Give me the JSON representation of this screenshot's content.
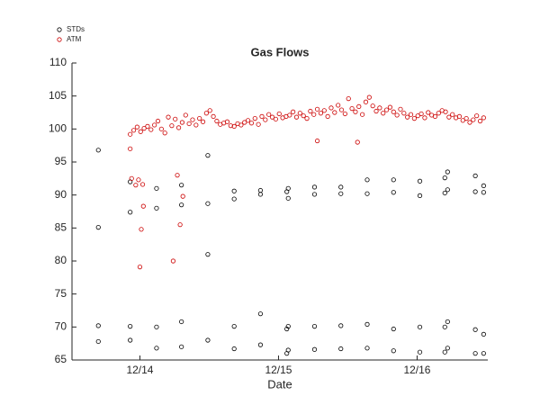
{
  "chart_data": {
    "type": "scatter",
    "title": "Gas Flows",
    "x_label": "Date",
    "xlim": [
      13.51,
      16.51
    ],
    "xticks": [
      {
        "value": 14,
        "label": "12/14"
      },
      {
        "value": 15,
        "label": "12/15"
      },
      {
        "value": 16,
        "label": "12/16"
      }
    ],
    "ylim": [
      65,
      110
    ],
    "yticks": [
      65,
      70,
      75,
      80,
      85,
      90,
      95,
      100,
      105,
      110
    ],
    "grid": false,
    "legend": "top-left",
    "series": [
      {
        "name": "STDs",
        "color": "#000000",
        "x": [
          13.7,
          13.7,
          13.7,
          13.7,
          13.93,
          13.93,
          13.93,
          13.93,
          14.12,
          14.12,
          14.12,
          14.12,
          14.3,
          14.3,
          14.3,
          14.3,
          14.49,
          14.49,
          14.49,
          14.49,
          14.68,
          14.68,
          14.68,
          14.68,
          14.87,
          14.87,
          14.87,
          14.87,
          15.07,
          15.07,
          15.07,
          15.07,
          15.06,
          15.06,
          15.06,
          15.26,
          15.26,
          15.26,
          15.26,
          15.45,
          15.45,
          15.45,
          15.45,
          15.64,
          15.64,
          15.64,
          15.64,
          15.83,
          15.83,
          15.83,
          15.83,
          16.02,
          16.02,
          16.02,
          16.02,
          16.22,
          16.22,
          16.2,
          16.2,
          16.22,
          16.2,
          16.22,
          16.2,
          16.42,
          16.42,
          16.42,
          16.42,
          16.48,
          16.48,
          16.48,
          16.48
        ],
        "values": [
          96.8,
          85.1,
          70.2,
          67.8,
          92.0,
          87.4,
          70.1,
          68.0,
          91.0,
          88.0,
          70.0,
          66.8,
          91.5,
          88.5,
          70.8,
          67.0,
          96.0,
          88.7,
          81.0,
          68.0,
          90.6,
          89.4,
          70.1,
          66.7,
          90.7,
          90.1,
          72.0,
          67.3,
          91.0,
          89.5,
          70.1,
          66.5,
          90.5,
          69.7,
          66.0,
          91.2,
          90.1,
          70.1,
          66.6,
          91.2,
          90.2,
          70.2,
          66.7,
          92.3,
          90.2,
          70.4,
          66.8,
          92.3,
          90.4,
          69.7,
          66.4,
          92.1,
          89.9,
          70.0,
          66.2,
          93.5,
          90.8,
          92.6,
          90.3,
          70.8,
          70.0,
          66.8,
          66.2,
          92.9,
          90.5,
          69.6,
          66.0,
          91.4,
          90.4,
          68.9,
          66.0
        ]
      },
      {
        "name": "ATM",
        "color": "#cc0000",
        "x": [
          13.93,
          13.955,
          13.98,
          14.005,
          14.03,
          14.055,
          14.08,
          14.105,
          14.13,
          14.155,
          14.18,
          14.205,
          14.23,
          14.255,
          14.28,
          14.305,
          14.33,
          14.355,
          14.38,
          14.405,
          14.43,
          14.455,
          14.48,
          14.505,
          14.53,
          14.555,
          14.58,
          14.605,
          14.63,
          14.655,
          14.68,
          14.705,
          14.73,
          14.755,
          14.78,
          14.805,
          14.83,
          14.855,
          14.88,
          14.905,
          14.93,
          14.955,
          14.98,
          15.005,
          15.03,
          15.055,
          15.08,
          15.105,
          15.13,
          15.155,
          15.18,
          15.205,
          15.23,
          15.255,
          15.28,
          15.305,
          15.33,
          15.355,
          15.38,
          15.405,
          15.43,
          15.455,
          15.48,
          15.505,
          15.53,
          15.555,
          15.58,
          15.605,
          15.63,
          15.655,
          15.68,
          15.705,
          15.73,
          15.755,
          15.78,
          15.805,
          15.83,
          15.855,
          15.88,
          15.905,
          15.93,
          15.955,
          15.98,
          16.005,
          16.03,
          16.055,
          16.08,
          16.105,
          16.13,
          16.155,
          16.18,
          16.205,
          16.23,
          16.255,
          16.28,
          16.305,
          16.33,
          16.355,
          16.38,
          16.405,
          16.43,
          16.455,
          16.48,
          13.93,
          13.94,
          13.97,
          13.99,
          14.0,
          14.01,
          14.02,
          14.025,
          14.24,
          14.27,
          14.29,
          14.31,
          15.28,
          15.57
        ],
        "values": [
          99.2,
          99.8,
          100.3,
          99.6,
          100.1,
          100.4,
          99.9,
          100.6,
          101.2,
          100.0,
          99.4,
          101.8,
          100.5,
          101.5,
          100.2,
          101.0,
          102.1,
          100.8,
          101.4,
          100.6,
          101.6,
          101.1,
          102.4,
          102.8,
          101.9,
          101.2,
          100.7,
          100.9,
          101.1,
          100.5,
          100.4,
          100.8,
          100.6,
          101.0,
          101.3,
          100.9,
          101.6,
          100.7,
          101.9,
          101.4,
          102.2,
          101.8,
          101.5,
          102.3,
          101.7,
          101.9,
          102.1,
          102.6,
          101.8,
          102.4,
          102.0,
          101.6,
          102.7,
          102.2,
          103.0,
          102.4,
          102.8,
          101.9,
          103.2,
          102.5,
          103.6,
          102.9,
          102.3,
          104.6,
          103.1,
          102.6,
          103.4,
          102.2,
          104.1,
          104.8,
          103.5,
          102.7,
          103.2,
          102.4,
          102.9,
          103.3,
          102.6,
          102.1,
          103.0,
          102.4,
          101.8,
          102.2,
          101.6,
          102.0,
          102.3,
          101.7,
          102.5,
          102.1,
          101.9,
          102.4,
          102.8,
          102.6,
          101.8,
          102.2,
          101.7,
          101.9,
          101.3,
          101.6,
          101.0,
          101.4,
          102.0,
          101.2,
          101.7,
          97.0,
          92.5,
          91.5,
          92.3,
          79.1,
          84.8,
          91.6,
          88.3,
          80.0,
          93.0,
          85.5,
          89.8,
          98.2,
          98.0
        ]
      }
    ]
  }
}
